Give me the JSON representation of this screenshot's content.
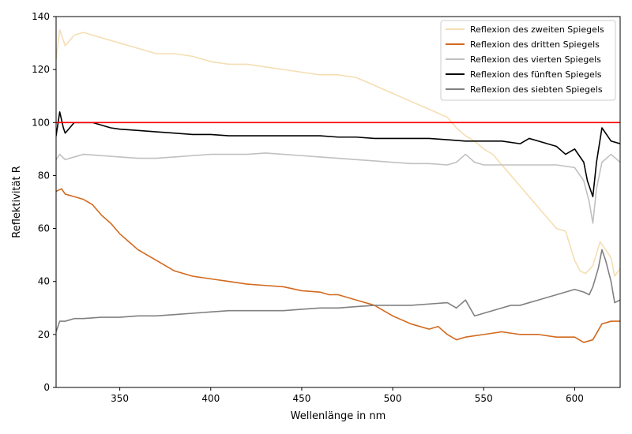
{
  "chart_data": {
    "type": "line",
    "xlabel": "Wellenlänge in nm",
    "ylabel": "Reflektivität R",
    "xlim": [
      315,
      625
    ],
    "ylim": [
      0,
      140
    ],
    "xticks": [
      350,
      400,
      450,
      500,
      550,
      600
    ],
    "yticks": [
      0,
      20,
      40,
      60,
      80,
      100,
      120,
      140
    ],
    "grid": false,
    "legend_position": "top-right",
    "reference_line": {
      "y": 100,
      "color": "#ff0000"
    },
    "series": [
      {
        "name": "Reflexion des zweiten Spiegels",
        "color": "#f5deb3",
        "points": [
          [
            315,
            124
          ],
          [
            317,
            135
          ],
          [
            320,
            129
          ],
          [
            325,
            133
          ],
          [
            330,
            134
          ],
          [
            335,
            133
          ],
          [
            340,
            132
          ],
          [
            345,
            131
          ],
          [
            350,
            130
          ],
          [
            360,
            128
          ],
          [
            370,
            126
          ],
          [
            380,
            126
          ],
          [
            390,
            125
          ],
          [
            400,
            123
          ],
          [
            410,
            122
          ],
          [
            420,
            122
          ],
          [
            430,
            121
          ],
          [
            440,
            120
          ],
          [
            450,
            119
          ],
          [
            460,
            118
          ],
          [
            470,
            118
          ],
          [
            480,
            117
          ],
          [
            490,
            114
          ],
          [
            500,
            111
          ],
          [
            510,
            108
          ],
          [
            520,
            105
          ],
          [
            530,
            102
          ],
          [
            535,
            98
          ],
          [
            540,
            95
          ],
          [
            545,
            93
          ],
          [
            550,
            90
          ],
          [
            555,
            88
          ],
          [
            560,
            84
          ],
          [
            565,
            80
          ],
          [
            570,
            76
          ],
          [
            575,
            72
          ],
          [
            580,
            68
          ],
          [
            585,
            64
          ],
          [
            590,
            60
          ],
          [
            595,
            59
          ],
          [
            600,
            48
          ],
          [
            603,
            44
          ],
          [
            606,
            43
          ],
          [
            610,
            46
          ],
          [
            614,
            55
          ],
          [
            617,
            52
          ],
          [
            620,
            49
          ],
          [
            622,
            42
          ],
          [
            625,
            45
          ]
        ]
      },
      {
        "name": "Reflexion des dritten Spiegels",
        "color": "#d2691e",
        "points": [
          [
            315,
            74
          ],
          [
            318,
            75
          ],
          [
            320,
            73
          ],
          [
            325,
            72
          ],
          [
            330,
            71
          ],
          [
            335,
            69
          ],
          [
            340,
            65
          ],
          [
            345,
            62
          ],
          [
            350,
            58
          ],
          [
            355,
            55
          ],
          [
            360,
            52
          ],
          [
            365,
            50
          ],
          [
            370,
            48
          ],
          [
            375,
            46
          ],
          [
            380,
            44
          ],
          [
            385,
            43
          ],
          [
            390,
            42
          ],
          [
            400,
            41
          ],
          [
            410,
            40
          ],
          [
            420,
            39
          ],
          [
            430,
            38.5
          ],
          [
            440,
            38
          ],
          [
            450,
            36.5
          ],
          [
            460,
            36
          ],
          [
            465,
            35
          ],
          [
            470,
            35
          ],
          [
            480,
            33
          ],
          [
            490,
            31
          ],
          [
            495,
            29
          ],
          [
            500,
            27
          ],
          [
            510,
            24
          ],
          [
            520,
            22
          ],
          [
            525,
            23
          ],
          [
            530,
            20
          ],
          [
            535,
            18
          ],
          [
            540,
            19
          ],
          [
            550,
            20
          ],
          [
            560,
            21
          ],
          [
            570,
            20
          ],
          [
            580,
            20
          ],
          [
            590,
            19
          ],
          [
            600,
            19
          ],
          [
            605,
            17
          ],
          [
            610,
            18
          ],
          [
            615,
            24
          ],
          [
            620,
            25
          ],
          [
            625,
            25
          ]
        ]
      },
      {
        "name": "Reflexion des vierten Spiegels",
        "color": "#c0c0c0",
        "points": [
          [
            315,
            86
          ],
          [
            317,
            88
          ],
          [
            320,
            86
          ],
          [
            325,
            87
          ],
          [
            330,
            88
          ],
          [
            340,
            87.5
          ],
          [
            350,
            87
          ],
          [
            360,
            86.5
          ],
          [
            370,
            86.5
          ],
          [
            380,
            87
          ],
          [
            390,
            87.5
          ],
          [
            400,
            88
          ],
          [
            410,
            88
          ],
          [
            420,
            88
          ],
          [
            430,
            88.5
          ],
          [
            440,
            88
          ],
          [
            450,
            87.5
          ],
          [
            460,
            87
          ],
          [
            470,
            86.5
          ],
          [
            480,
            86
          ],
          [
            490,
            85.5
          ],
          [
            500,
            85
          ],
          [
            510,
            84.5
          ],
          [
            520,
            84.5
          ],
          [
            530,
            84
          ],
          [
            535,
            85
          ],
          [
            540,
            88
          ],
          [
            545,
            85
          ],
          [
            550,
            84
          ],
          [
            560,
            84
          ],
          [
            570,
            84
          ],
          [
            580,
            84
          ],
          [
            590,
            84
          ],
          [
            600,
            83
          ],
          [
            605,
            78
          ],
          [
            608,
            70
          ],
          [
            610,
            62
          ],
          [
            612,
            75
          ],
          [
            615,
            85
          ],
          [
            620,
            88
          ],
          [
            625,
            85
          ]
        ]
      },
      {
        "name": "Reflexion des fünften Spiegels",
        "color": "#000000",
        "points": [
          [
            315,
            95
          ],
          [
            317,
            104
          ],
          [
            319,
            98
          ],
          [
            320,
            96
          ],
          [
            325,
            100
          ],
          [
            330,
            100
          ],
          [
            335,
            100
          ],
          [
            340,
            99
          ],
          [
            345,
            98
          ],
          [
            350,
            97.5
          ],
          [
            360,
            97
          ],
          [
            370,
            96.5
          ],
          [
            380,
            96
          ],
          [
            390,
            95.5
          ],
          [
            400,
            95.5
          ],
          [
            410,
            95
          ],
          [
            420,
            95
          ],
          [
            430,
            95
          ],
          [
            440,
            95
          ],
          [
            450,
            95
          ],
          [
            460,
            95
          ],
          [
            470,
            94.5
          ],
          [
            480,
            94.5
          ],
          [
            490,
            94
          ],
          [
            500,
            94
          ],
          [
            510,
            94
          ],
          [
            520,
            94
          ],
          [
            530,
            93.5
          ],
          [
            540,
            93
          ],
          [
            550,
            93
          ],
          [
            560,
            93
          ],
          [
            570,
            92
          ],
          [
            575,
            94
          ],
          [
            580,
            93
          ],
          [
            585,
            92
          ],
          [
            590,
            91
          ],
          [
            595,
            88
          ],
          [
            600,
            90
          ],
          [
            605,
            85
          ],
          [
            607,
            78
          ],
          [
            610,
            72
          ],
          [
            612,
            85
          ],
          [
            615,
            98
          ],
          [
            618,
            95
          ],
          [
            620,
            93
          ],
          [
            625,
            92
          ]
        ]
      },
      {
        "name": "Reflexion des siebten Spiegels",
        "color": "#808080",
        "points": [
          [
            315,
            21
          ],
          [
            317,
            25
          ],
          [
            320,
            25
          ],
          [
            325,
            26
          ],
          [
            330,
            26
          ],
          [
            340,
            26.5
          ],
          [
            350,
            26.5
          ],
          [
            360,
            27
          ],
          [
            370,
            27
          ],
          [
            380,
            27.5
          ],
          [
            390,
            28
          ],
          [
            400,
            28.5
          ],
          [
            410,
            29
          ],
          [
            420,
            29
          ],
          [
            430,
            29
          ],
          [
            440,
            29
          ],
          [
            450,
            29.5
          ],
          [
            460,
            30
          ],
          [
            470,
            30
          ],
          [
            480,
            30.5
          ],
          [
            490,
            31
          ],
          [
            500,
            31
          ],
          [
            510,
            31
          ],
          [
            520,
            31.5
          ],
          [
            530,
            32
          ],
          [
            535,
            30
          ],
          [
            540,
            33
          ],
          [
            545,
            27
          ],
          [
            550,
            28
          ],
          [
            555,
            29
          ],
          [
            560,
            30
          ],
          [
            565,
            31
          ],
          [
            570,
            31
          ],
          [
            575,
            32
          ],
          [
            580,
            33
          ],
          [
            585,
            34
          ],
          [
            590,
            35
          ],
          [
            595,
            36
          ],
          [
            600,
            37
          ],
          [
            605,
            36
          ],
          [
            608,
            35
          ],
          [
            610,
            38
          ],
          [
            613,
            45
          ],
          [
            615,
            52
          ],
          [
            617,
            48
          ],
          [
            620,
            40
          ],
          [
            622,
            32
          ],
          [
            625,
            33
          ]
        ]
      }
    ]
  }
}
